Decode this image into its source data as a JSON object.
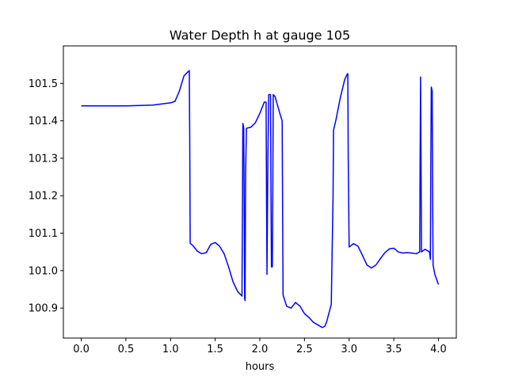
{
  "chart_data": {
    "type": "line",
    "title": "Water Depth h at gauge 105",
    "xlabel": "hours",
    "ylabel": "",
    "xlim": [
      -0.2,
      4.2
    ],
    "ylim": [
      100.82,
      101.6
    ],
    "grid": false,
    "xticks": [
      0.0,
      0.5,
      1.0,
      1.5,
      2.0,
      2.5,
      3.0,
      3.5,
      4.0
    ],
    "xtick_labels": [
      "0.0",
      "0.5",
      "1.0",
      "1.5",
      "2.0",
      "2.5",
      "3.0",
      "3.5",
      "4.0"
    ],
    "yticks": [
      100.9,
      101.0,
      101.1,
      101.2,
      101.3,
      101.4,
      101.5
    ],
    "ytick_labels": [
      "100.9",
      "101.0",
      "101.1",
      "101.2",
      "101.3",
      "101.4",
      "101.5"
    ],
    "series": [
      {
        "color": "#0000ff",
        "x": [
          0.0,
          0.5,
          0.8,
          1.0,
          1.05,
          1.1,
          1.15,
          1.2,
          1.21,
          1.215,
          1.22,
          1.25,
          1.3,
          1.35,
          1.4,
          1.45,
          1.5,
          1.55,
          1.6,
          1.65,
          1.7,
          1.75,
          1.8,
          1.805,
          1.81,
          1.82,
          1.83,
          1.835,
          1.84,
          1.85,
          1.9,
          1.95,
          2.0,
          2.05,
          2.07,
          2.075,
          2.08,
          2.09,
          2.1,
          2.12,
          2.125,
          2.13,
          2.14,
          2.145,
          2.15,
          2.17,
          2.2,
          2.23,
          2.25,
          2.26,
          2.3,
          2.35,
          2.4,
          2.45,
          2.5,
          2.55,
          2.6,
          2.65,
          2.7,
          2.73,
          2.75,
          2.8,
          2.82,
          2.825,
          2.85,
          2.9,
          2.95,
          2.98,
          2.985,
          2.99,
          3.0,
          3.05,
          3.1,
          3.15,
          3.2,
          3.25,
          3.3,
          3.35,
          3.4,
          3.45,
          3.5,
          3.55,
          3.6,
          3.65,
          3.7,
          3.75,
          3.79,
          3.795,
          3.8,
          3.805,
          3.81,
          3.85,
          3.9,
          3.91,
          3.915,
          3.92,
          3.93,
          3.935,
          3.94,
          3.96,
          4.0
        ],
        "y": [
          101.44,
          101.44,
          101.442,
          101.448,
          101.452,
          101.48,
          101.52,
          101.532,
          101.534,
          101.35,
          101.073,
          101.067,
          101.052,
          101.045,
          101.048,
          101.07,
          101.075,
          101.065,
          101.045,
          101.01,
          100.97,
          100.945,
          100.932,
          101.15,
          101.393,
          101.38,
          100.925,
          100.92,
          101.25,
          101.38,
          101.383,
          101.395,
          101.42,
          101.45,
          101.45,
          101.2,
          100.99,
          101.3,
          101.47,
          101.47,
          101.2,
          101.01,
          101.01,
          101.2,
          101.47,
          101.465,
          101.44,
          101.415,
          101.4,
          100.935,
          100.905,
          100.9,
          100.915,
          100.905,
          100.885,
          100.875,
          100.862,
          100.855,
          100.848,
          100.852,
          100.865,
          100.91,
          101.2,
          101.375,
          101.4,
          101.46,
          101.51,
          101.525,
          101.526,
          101.3,
          101.063,
          101.072,
          101.065,
          101.04,
          101.015,
          101.007,
          101.015,
          101.032,
          101.048,
          101.058,
          101.06,
          101.05,
          101.047,
          101.048,
          101.047,
          101.045,
          101.05,
          101.3,
          101.517,
          101.3,
          101.05,
          101.057,
          101.05,
          101.03,
          101.3,
          101.49,
          101.48,
          101.2,
          101.015,
          100.99,
          100.963
        ]
      }
    ]
  }
}
